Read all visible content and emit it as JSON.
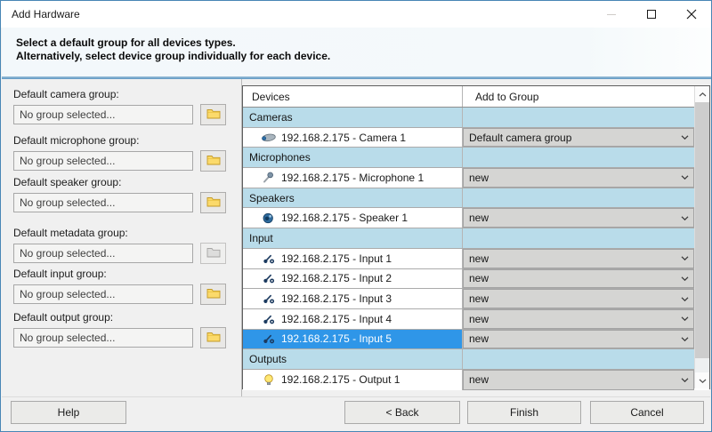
{
  "window": {
    "title": "Add Hardware"
  },
  "header": {
    "line1": "Select a default group for all devices types.",
    "line2": "Alternatively, select device group individually for each device."
  },
  "left_panel": {
    "groups": [
      {
        "label": "Default camera group:",
        "value": "No group selected...",
        "folder_enabled": true
      },
      {
        "label": "Default microphone group:",
        "value": "No group selected...",
        "folder_enabled": true
      },
      {
        "label": "Default speaker group:",
        "value": "No group selected...",
        "folder_enabled": true
      },
      {
        "label": "Default metadata group:",
        "value": "No group selected...",
        "folder_enabled": false
      },
      {
        "label": "Default input group:",
        "value": "No group selected...",
        "folder_enabled": true
      },
      {
        "label": "Default output group:",
        "value": "No group selected...",
        "folder_enabled": true
      }
    ]
  },
  "table": {
    "columns": [
      "Devices",
      "Add to Group"
    ],
    "rows": [
      {
        "type": "group",
        "label": "Cameras"
      },
      {
        "type": "device",
        "icon": "camera-icon",
        "name": "192.168.2.175 - Camera 1",
        "group": "Default camera group",
        "selected": false
      },
      {
        "type": "group",
        "label": "Microphones"
      },
      {
        "type": "device",
        "icon": "microphone-icon",
        "name": "192.168.2.175 - Microphone 1",
        "group": "new",
        "selected": false
      },
      {
        "type": "group",
        "label": "Speakers"
      },
      {
        "type": "device",
        "icon": "speaker-icon",
        "name": "192.168.2.175 - Speaker 1",
        "group": "new",
        "selected": false
      },
      {
        "type": "group",
        "label": "Input"
      },
      {
        "type": "device",
        "icon": "input-icon",
        "name": "192.168.2.175 - Input 1",
        "group": "new",
        "selected": false
      },
      {
        "type": "device",
        "icon": "input-icon",
        "name": "192.168.2.175 - Input 2",
        "group": "new",
        "selected": false
      },
      {
        "type": "device",
        "icon": "input-icon",
        "name": "192.168.2.175 - Input 3",
        "group": "new",
        "selected": false
      },
      {
        "type": "device",
        "icon": "input-icon",
        "name": "192.168.2.175 - Input 4",
        "group": "new",
        "selected": false
      },
      {
        "type": "device",
        "icon": "input-icon",
        "name": "192.168.2.175 - Input 5",
        "group": "new",
        "selected": true
      },
      {
        "type": "group",
        "label": "Outputs"
      },
      {
        "type": "device",
        "icon": "output-icon",
        "name": "192.168.2.175 - Output 1",
        "group": "new",
        "selected": false
      }
    ]
  },
  "footer": {
    "help": "Help",
    "back": "< Back",
    "finish": "Finish",
    "cancel": "Cancel"
  },
  "colors": {
    "selection": "#2f96e8",
    "group_row": "#b9dcea",
    "divider_blue": "#5e97c3",
    "window_border": "#4886b5",
    "folder_yellow": "#fbda6b"
  }
}
